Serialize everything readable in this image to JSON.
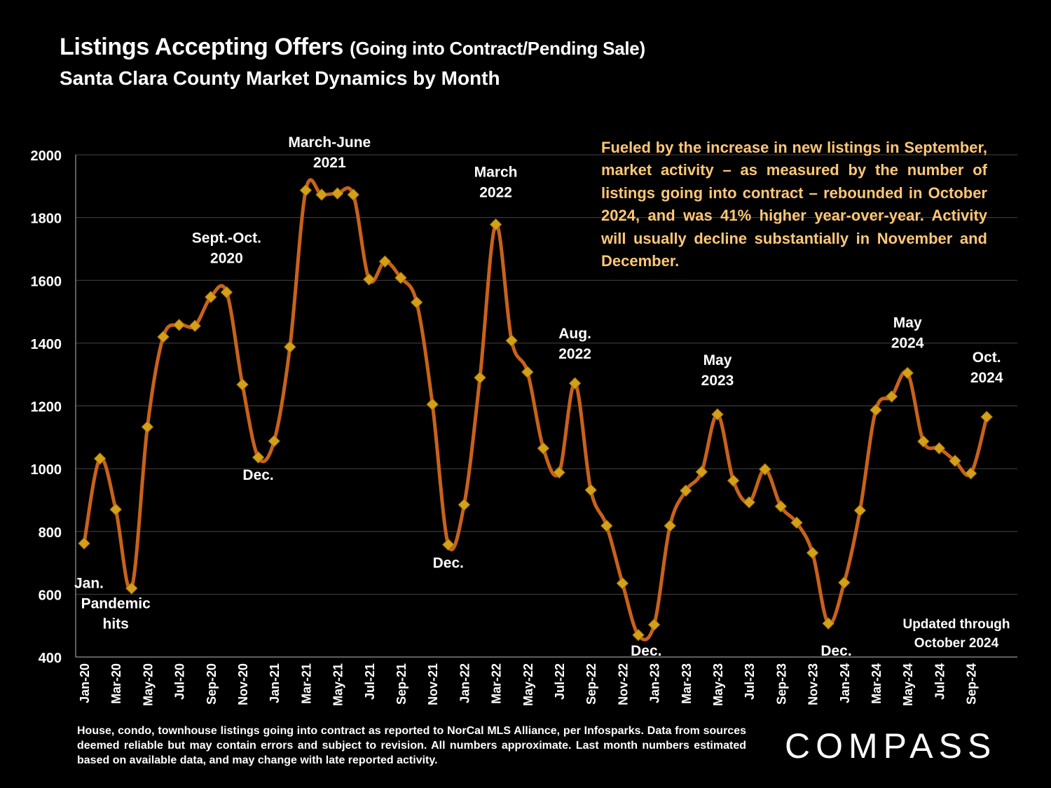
{
  "header": {
    "title": "Listings Accepting Offers",
    "title_paren": "(Going into Contract/Pending Sale)",
    "subtitle": "Santa Clara County Market Dynamics by Month"
  },
  "note": "Fueled by the increase in new listings in September, market activity – as measured by the number of listings going into contract – rebounded in October 2024, and was 41% higher year-over-year. Activity will usually decline substantially in November and December.",
  "updated": "Updated through October 2024",
  "footnote": "House, condo, townhouse listings going into contract as reported to NorCal MLS Alliance, per Infosparks. Data from sources deemed reliable but may contain errors and subject to revision. All numbers approximate. Last month numbers estimated based on available data, and may change with late reported activity.",
  "brand": "COMPASS",
  "colors": {
    "line": "#c8621b",
    "marker": "#d4a017",
    "note": "#ffc777",
    "grid": "#444444"
  },
  "chart_data": {
    "type": "line",
    "ylim": [
      400,
      2000
    ],
    "yticks": [
      400,
      600,
      800,
      1000,
      1200,
      1400,
      1600,
      1800,
      2000
    ],
    "grid": true,
    "x": [
      "Jan-20",
      "Feb-20",
      "Mar-20",
      "Apr-20",
      "May-20",
      "Jun-20",
      "Jul-20",
      "Aug-20",
      "Sep-20",
      "Oct-20",
      "Nov-20",
      "Dec-20",
      "Jan-21",
      "Feb-21",
      "Mar-21",
      "Apr-21",
      "May-21",
      "Jun-21",
      "Jul-21",
      "Aug-21",
      "Sep-21",
      "Oct-21",
      "Nov-21",
      "Dec-21",
      "Jan-22",
      "Feb-22",
      "Mar-22",
      "Apr-22",
      "May-22",
      "Jun-22",
      "Jul-22",
      "Aug-22",
      "Sep-22",
      "Oct-22",
      "Nov-22",
      "Dec-22",
      "Jan-23",
      "Feb-23",
      "Mar-23",
      "Apr-23",
      "May-23",
      "Jun-23",
      "Jul-23",
      "Aug-23",
      "Sep-23",
      "Oct-23",
      "Nov-23",
      "Dec-23",
      "Jan-24",
      "Feb-24",
      "Mar-24",
      "Apr-24",
      "May-24",
      "Jun-24",
      "Jul-24",
      "Aug-24",
      "Sep-24",
      "Oct-24"
    ],
    "xtick_labels": [
      "Jan-20",
      "Mar-20",
      "May-20",
      "Jul-20",
      "Sep-20",
      "Nov-20",
      "Jan-21",
      "Mar-21",
      "May-21",
      "Jul-21",
      "Sep-21",
      "Nov-21",
      "Jan-22",
      "Mar-22",
      "May-22",
      "Jul-22",
      "Sep-22",
      "Nov-22",
      "Jan-23",
      "Mar-23",
      "May-23",
      "Jul-23",
      "Sep-23",
      "Nov-23",
      "Jan-24",
      "Mar-24",
      "May-24",
      "Jul-24",
      "Sep-24"
    ],
    "series": [
      {
        "values": [
          762,
          1032,
          870,
          619,
          1133,
          1420,
          1458,
          1455,
          1547,
          1562,
          1268,
          1036,
          1088,
          1388,
          1887,
          1873,
          1877,
          1873,
          1603,
          1660,
          1608,
          1530,
          1205,
          758,
          885,
          1290,
          1778,
          1408,
          1308,
          1065,
          988,
          1272,
          932,
          818,
          635,
          470,
          503,
          818,
          930,
          990,
          1173,
          962,
          893,
          998,
          880,
          828,
          732,
          507,
          637,
          867,
          1187,
          1230,
          1305,
          1087,
          1065,
          1025,
          985,
          1165
        ]
      }
    ],
    "annotations": [
      {
        "lines": [
          "Jan."
        ],
        "month": 0,
        "ypos": 620,
        "align": "left"
      },
      {
        "lines": [
          "Pandemic",
          "hits"
        ],
        "month": 2,
        "ypos": 555
      },
      {
        "lines": [
          "Sept.-Oct.",
          "2020"
        ],
        "month": 9,
        "ypos": 1720
      },
      {
        "lines": [
          "Dec."
        ],
        "month": 11,
        "ypos": 965
      },
      {
        "lines": [
          "March-June",
          "2021"
        ],
        "month": 15.5,
        "ypos": 2025
      },
      {
        "lines": [
          "Dec."
        ],
        "month": 23,
        "ypos": 685
      },
      {
        "lines": [
          "March",
          "2022"
        ],
        "month": 26,
        "ypos": 1930
      },
      {
        "lines": [
          "Aug.",
          "2022"
        ],
        "month": 31,
        "ypos": 1415
      },
      {
        "lines": [
          "Dec."
        ],
        "month": 35.5,
        "ypos": 405
      },
      {
        "lines": [
          "May",
          "2023"
        ],
        "month": 40,
        "ypos": 1330
      },
      {
        "lines": [
          "Dec."
        ],
        "month": 47.5,
        "ypos": 405
      },
      {
        "lines": [
          "May",
          "2024"
        ],
        "month": 52,
        "ypos": 1450
      },
      {
        "lines": [
          "Oct.",
          "2024"
        ],
        "month": 57,
        "ypos": 1340
      }
    ]
  }
}
